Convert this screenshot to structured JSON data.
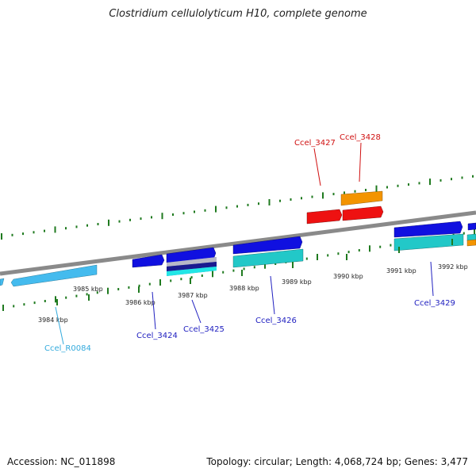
{
  "title": "Clostridium cellulolyticum H10, complete genome",
  "footer": {
    "accession": "Accession: NC_011898",
    "summary": "Topology: circular; Length: 4,068,724 bp; Genes: 3,477"
  },
  "colors": {
    "background": "#ffffff",
    "backbone": "#8a8a8a",
    "ticks": "#1f7a1f",
    "gene_blue": "#1010e0",
    "gene_cyan": "#22c8c8",
    "gene_red": "#ee1111",
    "gene_orange": "#f39400",
    "rna_lightblue": "#44bbee",
    "label_blue": "#2020c0",
    "label_red": "#d01010",
    "label_lightblue": "#33aadd"
  },
  "kbp_ticks": [
    "3984 kbp",
    "3985 kbp",
    "3986 kbp",
    "3987 kbp",
    "3988 kbp",
    "3989 kbp",
    "3990 kbp",
    "3991 kbp",
    "3992 kbp"
  ],
  "gene_labels": [
    "Ccel_R0084",
    "Ccel_3424",
    "Ccel_3425",
    "Ccel_3426",
    "Ccel_3427",
    "Ccel_3428",
    "Ccel_3429"
  ]
}
